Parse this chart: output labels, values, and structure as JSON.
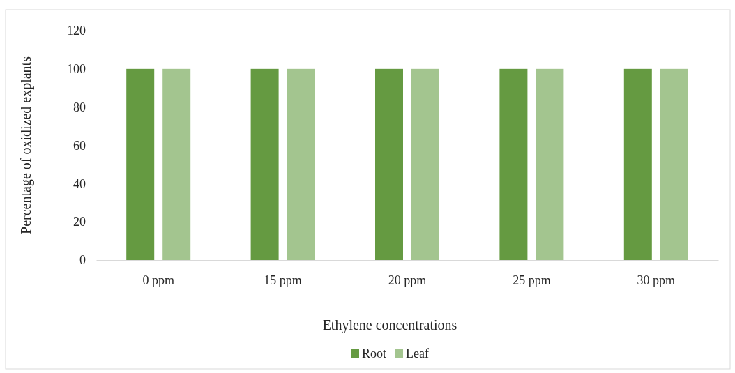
{
  "chart_data": {
    "type": "bar",
    "xlabel": "Ethylene concentrations",
    "ylabel": "Percentage of oxidized explants",
    "categories": [
      "0 ppm",
      "15 ppm",
      "20 ppm",
      "25 ppm",
      "30 ppm"
    ],
    "series": [
      {
        "name": "Root",
        "color": "#659a41",
        "values": [
          100,
          100,
          100,
          100,
          100
        ]
      },
      {
        "name": "Leaf",
        "color": "#a3c58f",
        "values": [
          100,
          100,
          100,
          100,
          100
        ]
      }
    ],
    "ylim": [
      0,
      120
    ],
    "yticks": [
      0,
      20,
      40,
      60,
      80,
      100,
      120
    ],
    "grid": false,
    "legend": "bottom"
  }
}
